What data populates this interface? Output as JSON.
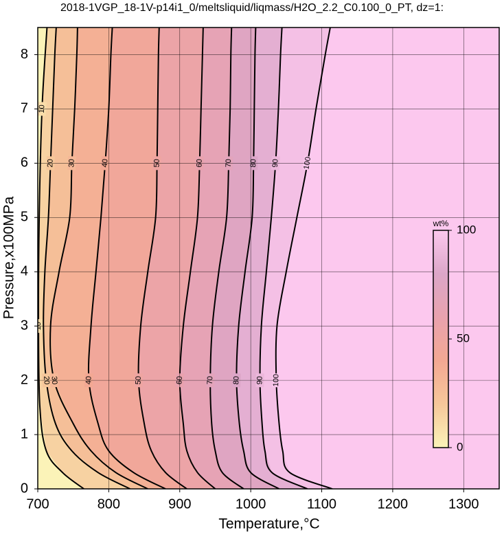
{
  "chart_data": {
    "type": "contour",
    "title": "2018-1VGP_18-1V-p14i1_0/meltsliquid/liqmass/H2O_2.2_C0.100_0_PT, dz=1:",
    "x_label": "Temperature,°C",
    "y_label": "Pressure,x100MPa",
    "xlim": [
      700,
      1350
    ],
    "ylim": [
      0,
      8.5
    ],
    "xticks": [
      700,
      800,
      900,
      1000,
      1100,
      1200,
      1300
    ],
    "yticks": [
      0,
      1,
      2,
      3,
      4,
      5,
      6,
      7,
      8
    ],
    "grid": true,
    "colorbar": {
      "label": "wt%",
      "clim": [
        0,
        100
      ],
      "ticks": [
        0,
        50,
        100
      ],
      "colormap": [
        "#fbf3b8",
        "#f6c79a",
        "#f3a893",
        "#e9a2ae",
        "#dca6c8",
        "#fcc8ee"
      ]
    },
    "contours": [
      {
        "level": 10,
        "x": [
          765,
          735,
          712,
          703,
          701,
          702,
          706,
          713
        ],
        "y": [
          0,
          0.3,
          0.7,
          1.5,
          3,
          5,
          7,
          8.5
        ]
      },
      {
        "level": 20,
        "x": [
          830,
          785,
          748,
          725,
          712,
          708,
          710,
          715,
          718,
          721,
          724,
          726
        ],
        "y": [
          0,
          0.3,
          0.7,
          1.2,
          2,
          3,
          4,
          5,
          6,
          7,
          8,
          8.5
        ]
      },
      {
        "level": 30,
        "x": [
          855,
          810,
          775,
          750,
          723,
          718,
          730,
          745,
          748,
          752,
          755,
          756
        ],
        "y": [
          0,
          0.3,
          0.7,
          1.2,
          2,
          3,
          4,
          5,
          6,
          7,
          8,
          8.5
        ]
      },
      {
        "level": 40,
        "x": [
          880,
          835,
          800,
          785,
          772,
          775,
          782,
          789,
          795,
          800,
          803,
          805
        ],
        "y": [
          0,
          0.3,
          0.7,
          1.2,
          2,
          3,
          4,
          5,
          6,
          7,
          8,
          8.5
        ]
      },
      {
        "level": 50,
        "x": [
          910,
          880,
          860,
          850,
          842,
          845,
          855,
          866,
          868,
          869,
          870,
          871
        ],
        "y": [
          0,
          0.3,
          0.7,
          1.2,
          2,
          3,
          4,
          5,
          6,
          7,
          8,
          8.5
        ]
      },
      {
        "level": 60,
        "x": [
          950,
          925,
          910,
          905,
          900,
          905,
          915,
          925,
          928,
          930,
          932,
          933
        ],
        "y": [
          0,
          0.3,
          0.7,
          1.2,
          2,
          3,
          4,
          5,
          6,
          7,
          8,
          8.5
        ]
      },
      {
        "level": 70,
        "x": [
          990,
          960,
          950,
          945,
          943,
          946,
          955,
          966,
          969,
          971,
          972,
          973
        ],
        "y": [
          0,
          0.3,
          0.7,
          1.2,
          2,
          3,
          4,
          5,
          6,
          7,
          8,
          8.5
        ]
      },
      {
        "level": 80,
        "x": [
          1040,
          1000,
          990,
          984,
          980,
          983,
          992,
          1002,
          1004,
          1005,
          1006,
          1007
        ],
        "y": [
          0,
          0.3,
          0.7,
          1.2,
          2,
          3,
          4,
          5,
          6,
          7,
          8,
          8.5
        ]
      },
      {
        "level": 90,
        "x": [
          1080,
          1030,
          1020,
          1016,
          1013,
          1015,
          1022,
          1029,
          1035,
          1039,
          1042,
          1044
        ],
        "y": [
          0,
          0.3,
          0.7,
          1.2,
          2,
          3,
          4,
          5,
          6,
          7,
          8,
          8.5
        ]
      },
      {
        "level": 100,
        "x": [
          1115,
          1055,
          1045,
          1040,
          1036,
          1037,
          1050,
          1065,
          1080,
          1092,
          1105,
          1112
        ],
        "y": [
          0,
          0.3,
          0.7,
          1.2,
          2,
          3,
          4,
          5,
          6,
          7,
          8,
          8.5
        ]
      }
    ]
  }
}
